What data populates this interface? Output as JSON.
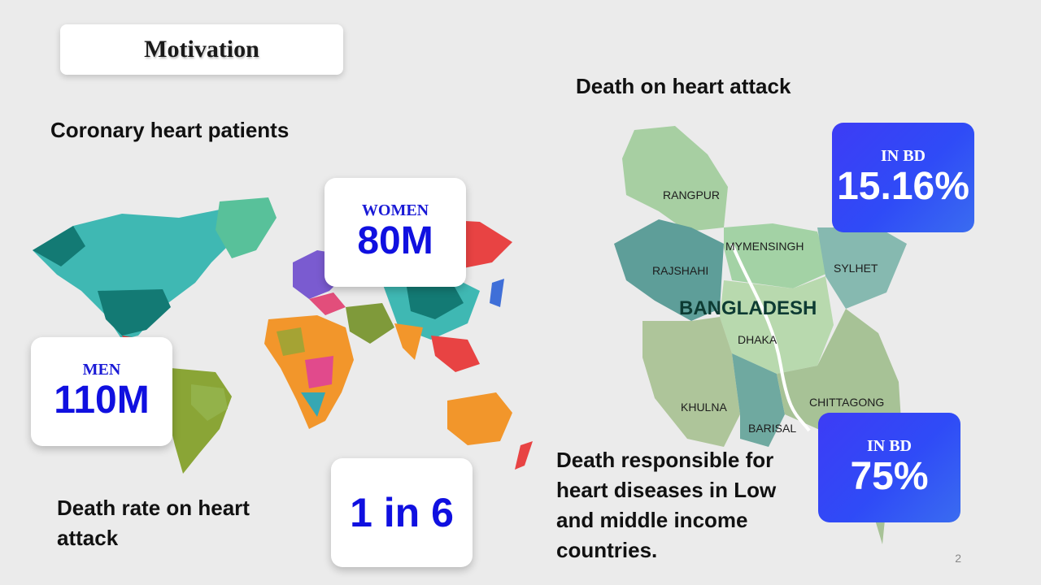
{
  "title": "Motivation",
  "left": {
    "heading": "Coronary heart patients",
    "women": {
      "label": "WOMEN",
      "value": "80M"
    },
    "men": {
      "label": "MEN",
      "value": "110M"
    },
    "death_rate_heading": "Death rate on heart attack",
    "death_rate_value": "1 in 6"
  },
  "right": {
    "heading": "Death on heart attack",
    "card1": {
      "label": "IN BD",
      "value": "15.16%"
    },
    "card2": {
      "label": "IN BD",
      "value": "75%"
    },
    "income_text": "Death responsible for heart diseases in Low and middle income countries.",
    "map": {
      "country": "BANGLADESH",
      "regions": [
        "RANGPUR",
        "MYMENSINGH",
        "RAJSHAHI",
        "SYLHET",
        "DHAKA",
        "KHULNA",
        "CHITTAGONG",
        "BARISAL"
      ]
    }
  },
  "page_number": "2"
}
